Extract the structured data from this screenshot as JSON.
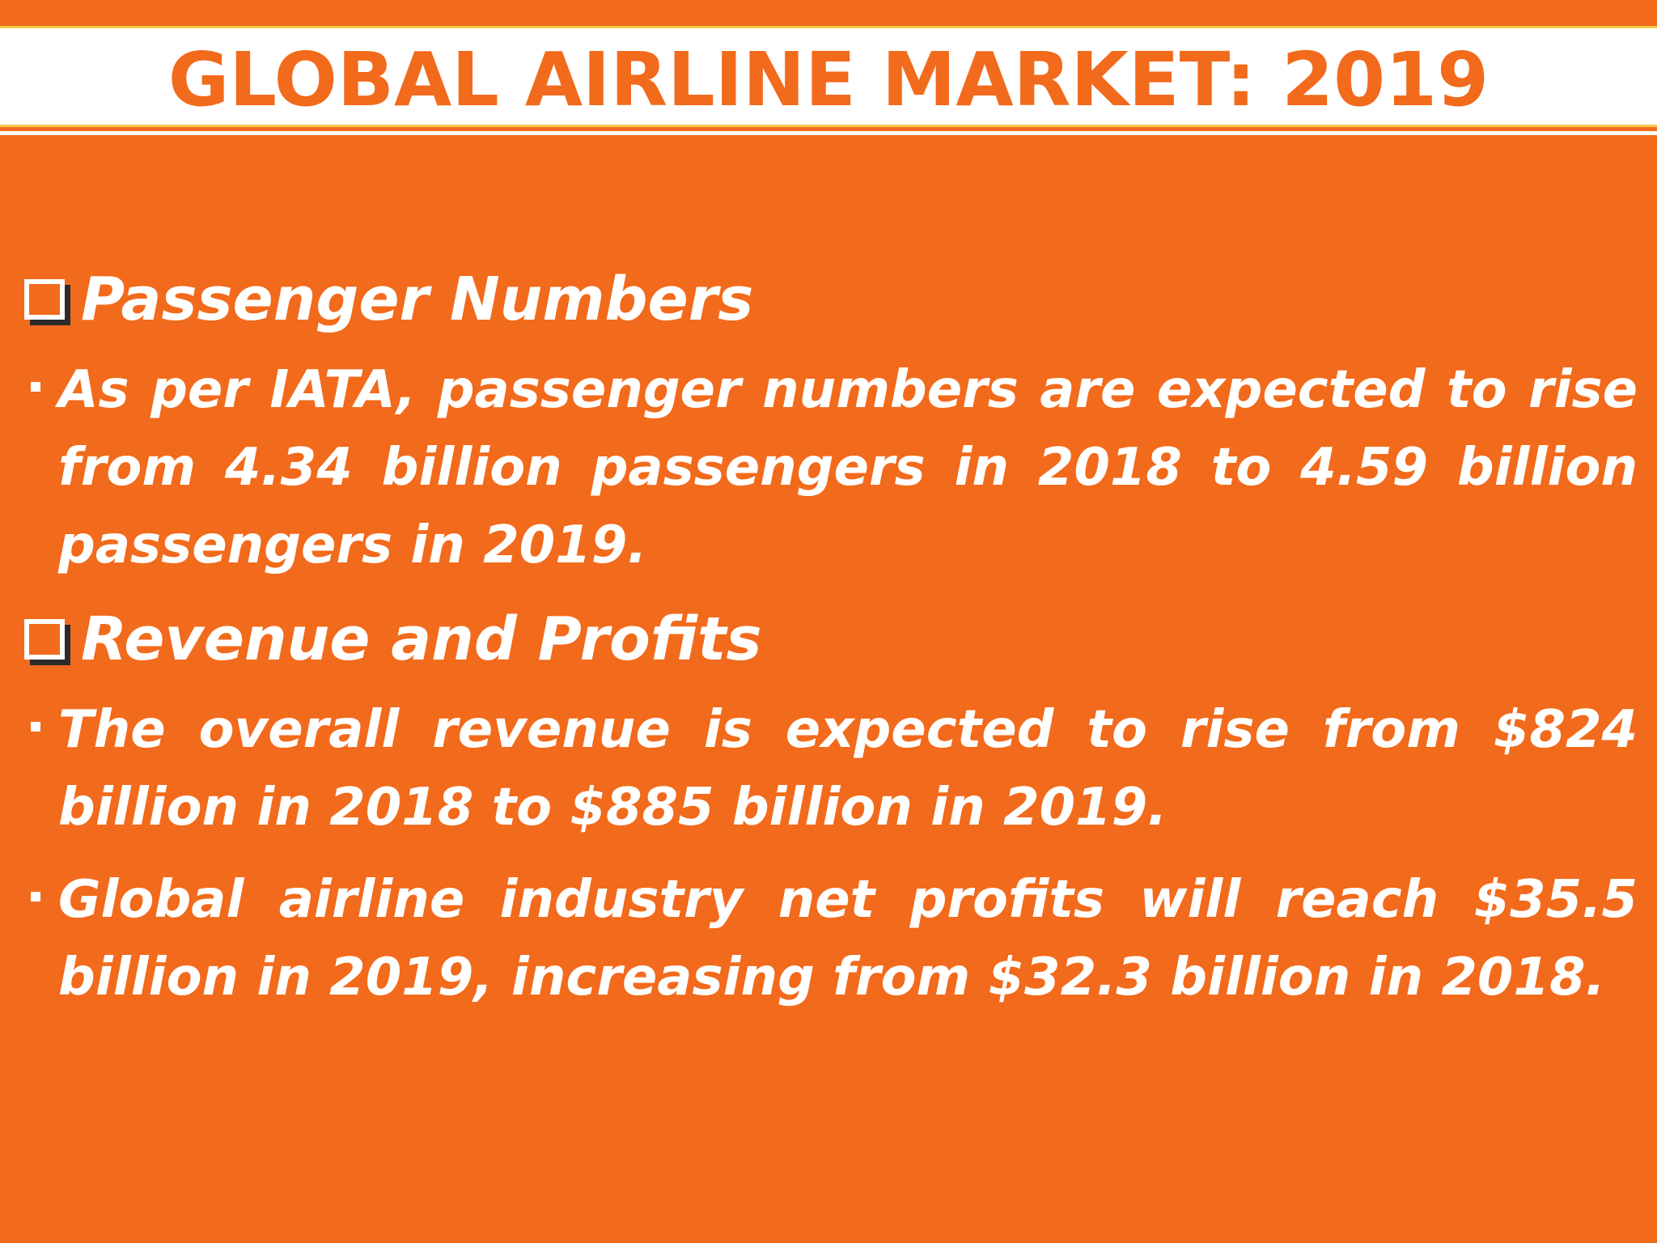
{
  "slide": {
    "title": "GLOBAL AIRLINE MARKET: 2019"
  },
  "sections": [
    {
      "heading": "Passenger Numbers",
      "bullets": [
        "As per IATA, passenger numbers are expected to rise from 4.34 billion passengers in 2018 to 4.59 billion passengers in 2019."
      ]
    },
    {
      "heading": "Revenue and Profits",
      "bullets": [
        "The overall revenue is expected to rise from $824 billion in 2018 to $885 billion in 2019.",
        "Global airline industry net profits will reach $35.5 billion in 2019, increasing from $32.3 billion in 2018."
      ]
    }
  ],
  "colors": {
    "background": "#F26A1B",
    "title_bar": "#FFFFFF",
    "title_text": "#F26A1B",
    "body_text": "#FFFFFF"
  },
  "icons": {
    "section_marker": "checkbox-icon",
    "bullet_marker": "square-bullet-icon"
  }
}
